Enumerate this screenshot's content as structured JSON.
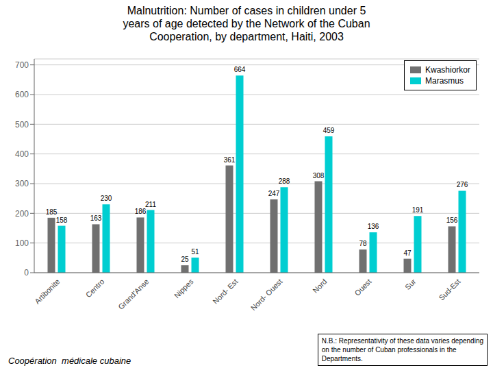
{
  "chart_data": {
    "type": "bar",
    "title": "Malnutrition: Number of cases in children under 5\nyears of age detected by the Network of the Cuban\nCooperation, by department, Haiti, 2003",
    "categories": [
      "Artibonite",
      "Centro",
      "Grand'Anse",
      "Nippes",
      "Nord- Est",
      "Nord- Ouest",
      "Nord",
      "Ouest",
      "Sur",
      "Sud-Est"
    ],
    "series": [
      {
        "name": "Kwashiorkor",
        "color": "#707070",
        "values": [
          185,
          163,
          186,
          25,
          361,
          247,
          308,
          78,
          47,
          156
        ]
      },
      {
        "name": "Marasmus",
        "color": "#00CED1",
        "values": [
          158,
          230,
          211,
          51,
          664,
          288,
          459,
          136,
          191,
          276
        ]
      }
    ],
    "ylim": [
      0,
      720
    ],
    "yticks": [
      0,
      100,
      200,
      300,
      400,
      500,
      600,
      700
    ],
    "grid": true,
    "legend": "upper right",
    "data_labels": true,
    "annotations": [
      "N.B.: Representativity of these data varies depending\non the number of Cuban professionals in the\nDepartments.",
      "Coopération  médicale cubaine"
    ]
  }
}
